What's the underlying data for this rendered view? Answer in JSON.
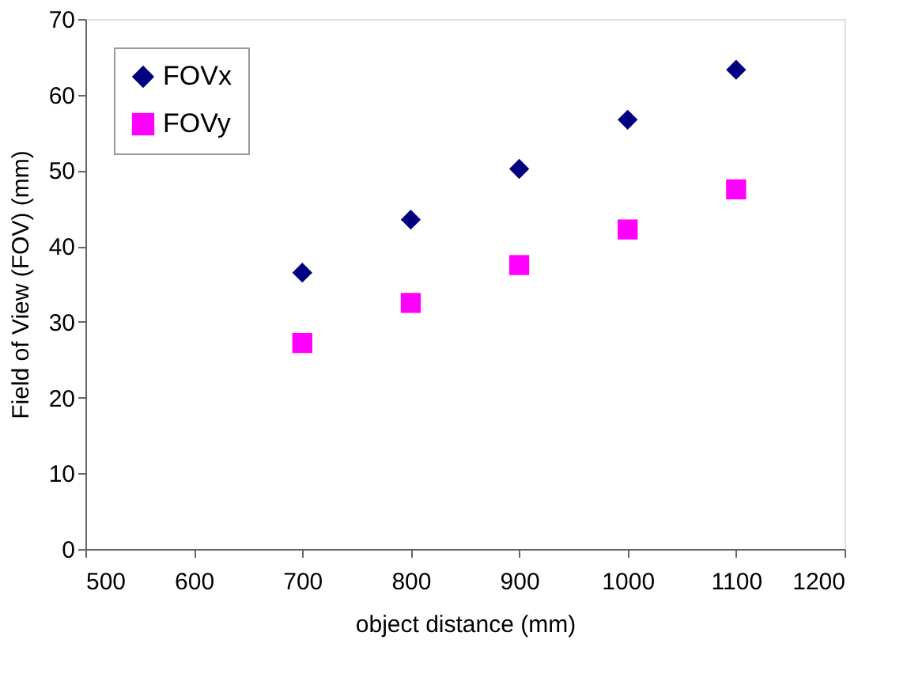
{
  "chart_data": {
    "type": "scatter",
    "xlabel": "object distance (mm)",
    "ylabel": "Field of View (FOV) (mm)",
    "x": [
      700,
      800,
      900,
      1000,
      1100
    ],
    "series": [
      {
        "name": "FOVx",
        "color": "#000080",
        "marker": "diamond",
        "values": [
          36.5,
          43.5,
          50.2,
          56.7,
          63.3
        ]
      },
      {
        "name": "FOVy",
        "color": "#ff00ff",
        "marker": "square",
        "values": [
          27.2,
          32.5,
          37.5,
          42.2,
          47.5
        ]
      }
    ],
    "xlim": [
      500,
      1200
    ],
    "xticks": [
      500,
      600,
      700,
      800,
      900,
      1000,
      1100,
      1200
    ],
    "ylim": [
      0,
      70
    ],
    "yticks": [
      0,
      10,
      20,
      30,
      40,
      50,
      60,
      70
    ],
    "grid": false,
    "legend": "top left"
  }
}
